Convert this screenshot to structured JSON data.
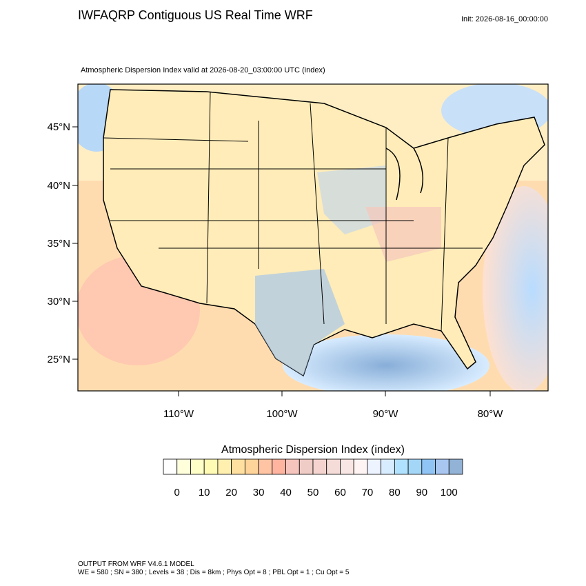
{
  "header": {
    "title": "IWFAQRP Contiguous US Real Time WRF",
    "init": "Init: 2026-08-16_00:00:00",
    "subtitle": "Atmospheric Dispersion Index valid at 2026-08-20_03:00:00 UTC   (index)"
  },
  "map": {
    "lat_labels": [
      "45°N",
      "40°N",
      "35°N",
      "30°N",
      "25°N"
    ],
    "lon_labels": [
      "110°W",
      "100°W",
      "90°W",
      "80°W"
    ]
  },
  "colorbar": {
    "title": "Atmospheric Dispersion Index  (index)",
    "labels": [
      "0",
      "10",
      "20",
      "30",
      "40",
      "50",
      "60",
      "70",
      "80",
      "90",
      "100"
    ],
    "colors": [
      "#ffffff",
      "#ffffdc",
      "#ffffc8",
      "#fffab4",
      "#fff0b0",
      "#ffe0a0",
      "#ffd49a",
      "#ffc4a4",
      "#ffb4a0",
      "#f5c4bc",
      "#f0ccc6",
      "#f5d4d0",
      "#f5dcd8",
      "#f8e6e4",
      "#fff4f4",
      "#eef4ff",
      "#d8ecff",
      "#b0e2ff",
      "#a4d6f8",
      "#90c4f4",
      "#a8c6f0",
      "#92b2d6"
    ]
  },
  "footer": {
    "line1": "OUTPUT FROM WRF V4.6.1 MODEL",
    "line2": "WE = 580 ; SN = 380 ; Levels = 38 ; Dis = 8km ; Phys Opt = 8 ; PBL Opt = 1 ; Cu Opt = 5"
  }
}
